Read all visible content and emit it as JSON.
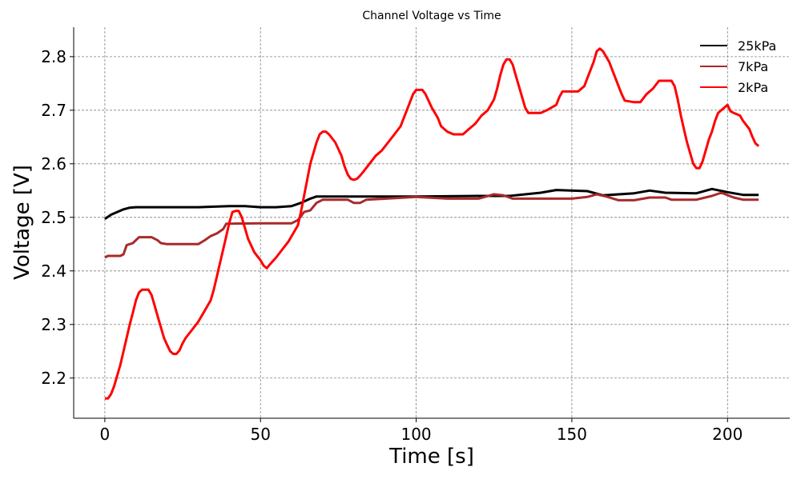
{
  "chart_data": {
    "type": "line",
    "title": "Channel Voltage vs Time",
    "xlabel": "Time [s]",
    "ylabel": "Voltage [V]",
    "xlim": [
      -10,
      220
    ],
    "ylim": [
      2.125,
      2.855
    ],
    "xticks": [
      0,
      50,
      100,
      150,
      200
    ],
    "yticks": [
      2.2,
      2.3,
      2.4,
      2.5,
      2.6,
      2.7,
      2.8
    ],
    "grid": true,
    "legend_position": "top-right",
    "series": [
      {
        "name": "25kPa",
        "color": "#000000",
        "points": [
          [
            0,
            2.497
          ],
          [
            2,
            2.505
          ],
          [
            4,
            2.51
          ],
          [
            6,
            2.515
          ],
          [
            8,
            2.518
          ],
          [
            10,
            2.519
          ],
          [
            20,
            2.519
          ],
          [
            30,
            2.519
          ],
          [
            40,
            2.521
          ],
          [
            45,
            2.521
          ],
          [
            50,
            2.519
          ],
          [
            55,
            2.519
          ],
          [
            60,
            2.521
          ],
          [
            63,
            2.527
          ],
          [
            66,
            2.535
          ],
          [
            68,
            2.539
          ],
          [
            80,
            2.539
          ],
          [
            100,
            2.539
          ],
          [
            120,
            2.54
          ],
          [
            130,
            2.54
          ],
          [
            140,
            2.546
          ],
          [
            145,
            2.551
          ],
          [
            155,
            2.549
          ],
          [
            160,
            2.541
          ],
          [
            170,
            2.545
          ],
          [
            175,
            2.55
          ],
          [
            180,
            2.546
          ],
          [
            190,
            2.545
          ],
          [
            195,
            2.553
          ],
          [
            200,
            2.547
          ],
          [
            205,
            2.542
          ],
          [
            210,
            2.542
          ]
        ]
      },
      {
        "name": "7kPa",
        "color": "#a82a2a",
        "points": [
          [
            0,
            2.425
          ],
          [
            1,
            2.428
          ],
          [
            5,
            2.428
          ],
          [
            6,
            2.431
          ],
          [
            7,
            2.448
          ],
          [
            9,
            2.452
          ],
          [
            11,
            2.463
          ],
          [
            15,
            2.463
          ],
          [
            17,
            2.457
          ],
          [
            18,
            2.452
          ],
          [
            20,
            2.45
          ],
          [
            25,
            2.45
          ],
          [
            30,
            2.45
          ],
          [
            32,
            2.457
          ],
          [
            34,
            2.465
          ],
          [
            36,
            2.47
          ],
          [
            38,
            2.478
          ],
          [
            39,
            2.488
          ],
          [
            50,
            2.489
          ],
          [
            60,
            2.489
          ],
          [
            62,
            2.495
          ],
          [
            63,
            2.502
          ],
          [
            64,
            2.51
          ],
          [
            66,
            2.513
          ],
          [
            68,
            2.527
          ],
          [
            70,
            2.533
          ],
          [
            78,
            2.533
          ],
          [
            80,
            2.527
          ],
          [
            82,
            2.527
          ],
          [
            84,
            2.533
          ],
          [
            100,
            2.538
          ],
          [
            110,
            2.535
          ],
          [
            120,
            2.535
          ],
          [
            125,
            2.543
          ],
          [
            128,
            2.541
          ],
          [
            131,
            2.535
          ],
          [
            140,
            2.535
          ],
          [
            150,
            2.535
          ],
          [
            155,
            2.538
          ],
          [
            158,
            2.543
          ],
          [
            161,
            2.539
          ],
          [
            165,
            2.532
          ],
          [
            170,
            2.532
          ],
          [
            175,
            2.537
          ],
          [
            180,
            2.537
          ],
          [
            182,
            2.533
          ],
          [
            190,
            2.533
          ],
          [
            195,
            2.54
          ],
          [
            198,
            2.546
          ],
          [
            202,
            2.537
          ],
          [
            205,
            2.533
          ],
          [
            210,
            2.533
          ]
        ]
      },
      {
        "name": "2kPa",
        "color": "#ff0000",
        "points": [
          [
            0,
            2.162
          ],
          [
            1,
            2.162
          ],
          [
            2,
            2.17
          ],
          [
            3,
            2.185
          ],
          [
            4,
            2.205
          ],
          [
            5,
            2.225
          ],
          [
            6,
            2.25
          ],
          [
            7,
            2.275
          ],
          [
            8,
            2.3
          ],
          [
            9,
            2.322
          ],
          [
            10,
            2.345
          ],
          [
            11,
            2.36
          ],
          [
            12,
            2.365
          ],
          [
            14,
            2.365
          ],
          [
            15,
            2.355
          ],
          [
            16,
            2.335
          ],
          [
            17,
            2.315
          ],
          [
            18,
            2.295
          ],
          [
            19,
            2.275
          ],
          [
            20,
            2.262
          ],
          [
            21,
            2.25
          ],
          [
            22,
            2.245
          ],
          [
            23,
            2.245
          ],
          [
            24,
            2.252
          ],
          [
            25,
            2.265
          ],
          [
            26,
            2.275
          ],
          [
            28,
            2.29
          ],
          [
            30,
            2.305
          ],
          [
            32,
            2.325
          ],
          [
            34,
            2.345
          ],
          [
            35,
            2.365
          ],
          [
            36,
            2.39
          ],
          [
            37,
            2.415
          ],
          [
            38,
            2.44
          ],
          [
            39,
            2.465
          ],
          [
            40,
            2.49
          ],
          [
            41,
            2.51
          ],
          [
            42,
            2.512
          ],
          [
            43,
            2.512
          ],
          [
            44,
            2.5
          ],
          [
            45,
            2.48
          ],
          [
            46,
            2.46
          ],
          [
            48,
            2.435
          ],
          [
            50,
            2.42
          ],
          [
            51,
            2.41
          ],
          [
            52,
            2.405
          ],
          [
            53,
            2.412
          ],
          [
            55,
            2.425
          ],
          [
            57,
            2.44
          ],
          [
            59,
            2.455
          ],
          [
            61,
            2.475
          ],
          [
            62,
            2.485
          ],
          [
            63,
            2.51
          ],
          [
            64,
            2.54
          ],
          [
            65,
            2.57
          ],
          [
            66,
            2.6
          ],
          [
            67,
            2.62
          ],
          [
            68,
            2.64
          ],
          [
            69,
            2.655
          ],
          [
            70,
            2.66
          ],
          [
            71,
            2.66
          ],
          [
            72,
            2.655
          ],
          [
            74,
            2.64
          ],
          [
            76,
            2.615
          ],
          [
            77,
            2.595
          ],
          [
            78,
            2.58
          ],
          [
            79,
            2.572
          ],
          [
            80,
            2.57
          ],
          [
            81,
            2.572
          ],
          [
            82,
            2.578
          ],
          [
            83,
            2.585
          ],
          [
            85,
            2.6
          ],
          [
            87,
            2.615
          ],
          [
            89,
            2.625
          ],
          [
            91,
            2.64
          ],
          [
            93,
            2.655
          ],
          [
            95,
            2.67
          ],
          [
            97,
            2.7
          ],
          [
            99,
            2.73
          ],
          [
            100,
            2.738
          ],
          [
            102,
            2.738
          ],
          [
            103,
            2.73
          ],
          [
            105,
            2.705
          ],
          [
            107,
            2.685
          ],
          [
            108,
            2.67
          ],
          [
            110,
            2.66
          ],
          [
            112,
            2.655
          ],
          [
            115,
            2.655
          ],
          [
            117,
            2.665
          ],
          [
            119,
            2.675
          ],
          [
            121,
            2.69
          ],
          [
            123,
            2.7
          ],
          [
            125,
            2.72
          ],
          [
            126,
            2.74
          ],
          [
            127,
            2.765
          ],
          [
            128,
            2.785
          ],
          [
            129,
            2.795
          ],
          [
            130,
            2.795
          ],
          [
            131,
            2.785
          ],
          [
            132,
            2.765
          ],
          [
            133,
            2.745
          ],
          [
            134,
            2.725
          ],
          [
            135,
            2.705
          ],
          [
            136,
            2.695
          ],
          [
            140,
            2.695
          ],
          [
            142,
            2.7
          ],
          [
            145,
            2.71
          ],
          [
            146,
            2.725
          ],
          [
            147,
            2.735
          ],
          [
            150,
            2.735
          ],
          [
            152,
            2.735
          ],
          [
            154,
            2.745
          ],
          [
            155,
            2.76
          ],
          [
            157,
            2.79
          ],
          [
            158,
            2.81
          ],
          [
            159,
            2.815
          ],
          [
            160,
            2.81
          ],
          [
            161,
            2.8
          ],
          [
            162,
            2.79
          ],
          [
            163,
            2.775
          ],
          [
            164,
            2.76
          ],
          [
            165,
            2.745
          ],
          [
            166,
            2.73
          ],
          [
            167,
            2.718
          ],
          [
            170,
            2.715
          ],
          [
            172,
            2.715
          ],
          [
            174,
            2.73
          ],
          [
            176,
            2.74
          ],
          [
            178,
            2.755
          ],
          [
            182,
            2.755
          ],
          [
            183,
            2.745
          ],
          [
            184,
            2.72
          ],
          [
            185,
            2.69
          ],
          [
            186,
            2.665
          ],
          [
            187,
            2.64
          ],
          [
            188,
            2.62
          ],
          [
            189,
            2.6
          ],
          [
            190,
            2.592
          ],
          [
            191,
            2.592
          ],
          [
            192,
            2.605
          ],
          [
            193,
            2.625
          ],
          [
            194,
            2.645
          ],
          [
            195,
            2.66
          ],
          [
            196,
            2.68
          ],
          [
            197,
            2.695
          ],
          [
            198,
            2.7
          ],
          [
            199,
            2.705
          ],
          [
            200,
            2.71
          ],
          [
            201,
            2.698
          ],
          [
            202,
            2.695
          ],
          [
            204,
            2.69
          ],
          [
            205,
            2.68
          ],
          [
            207,
            2.665
          ],
          [
            208,
            2.65
          ],
          [
            209,
            2.638
          ],
          [
            210,
            2.633
          ]
        ]
      }
    ]
  }
}
